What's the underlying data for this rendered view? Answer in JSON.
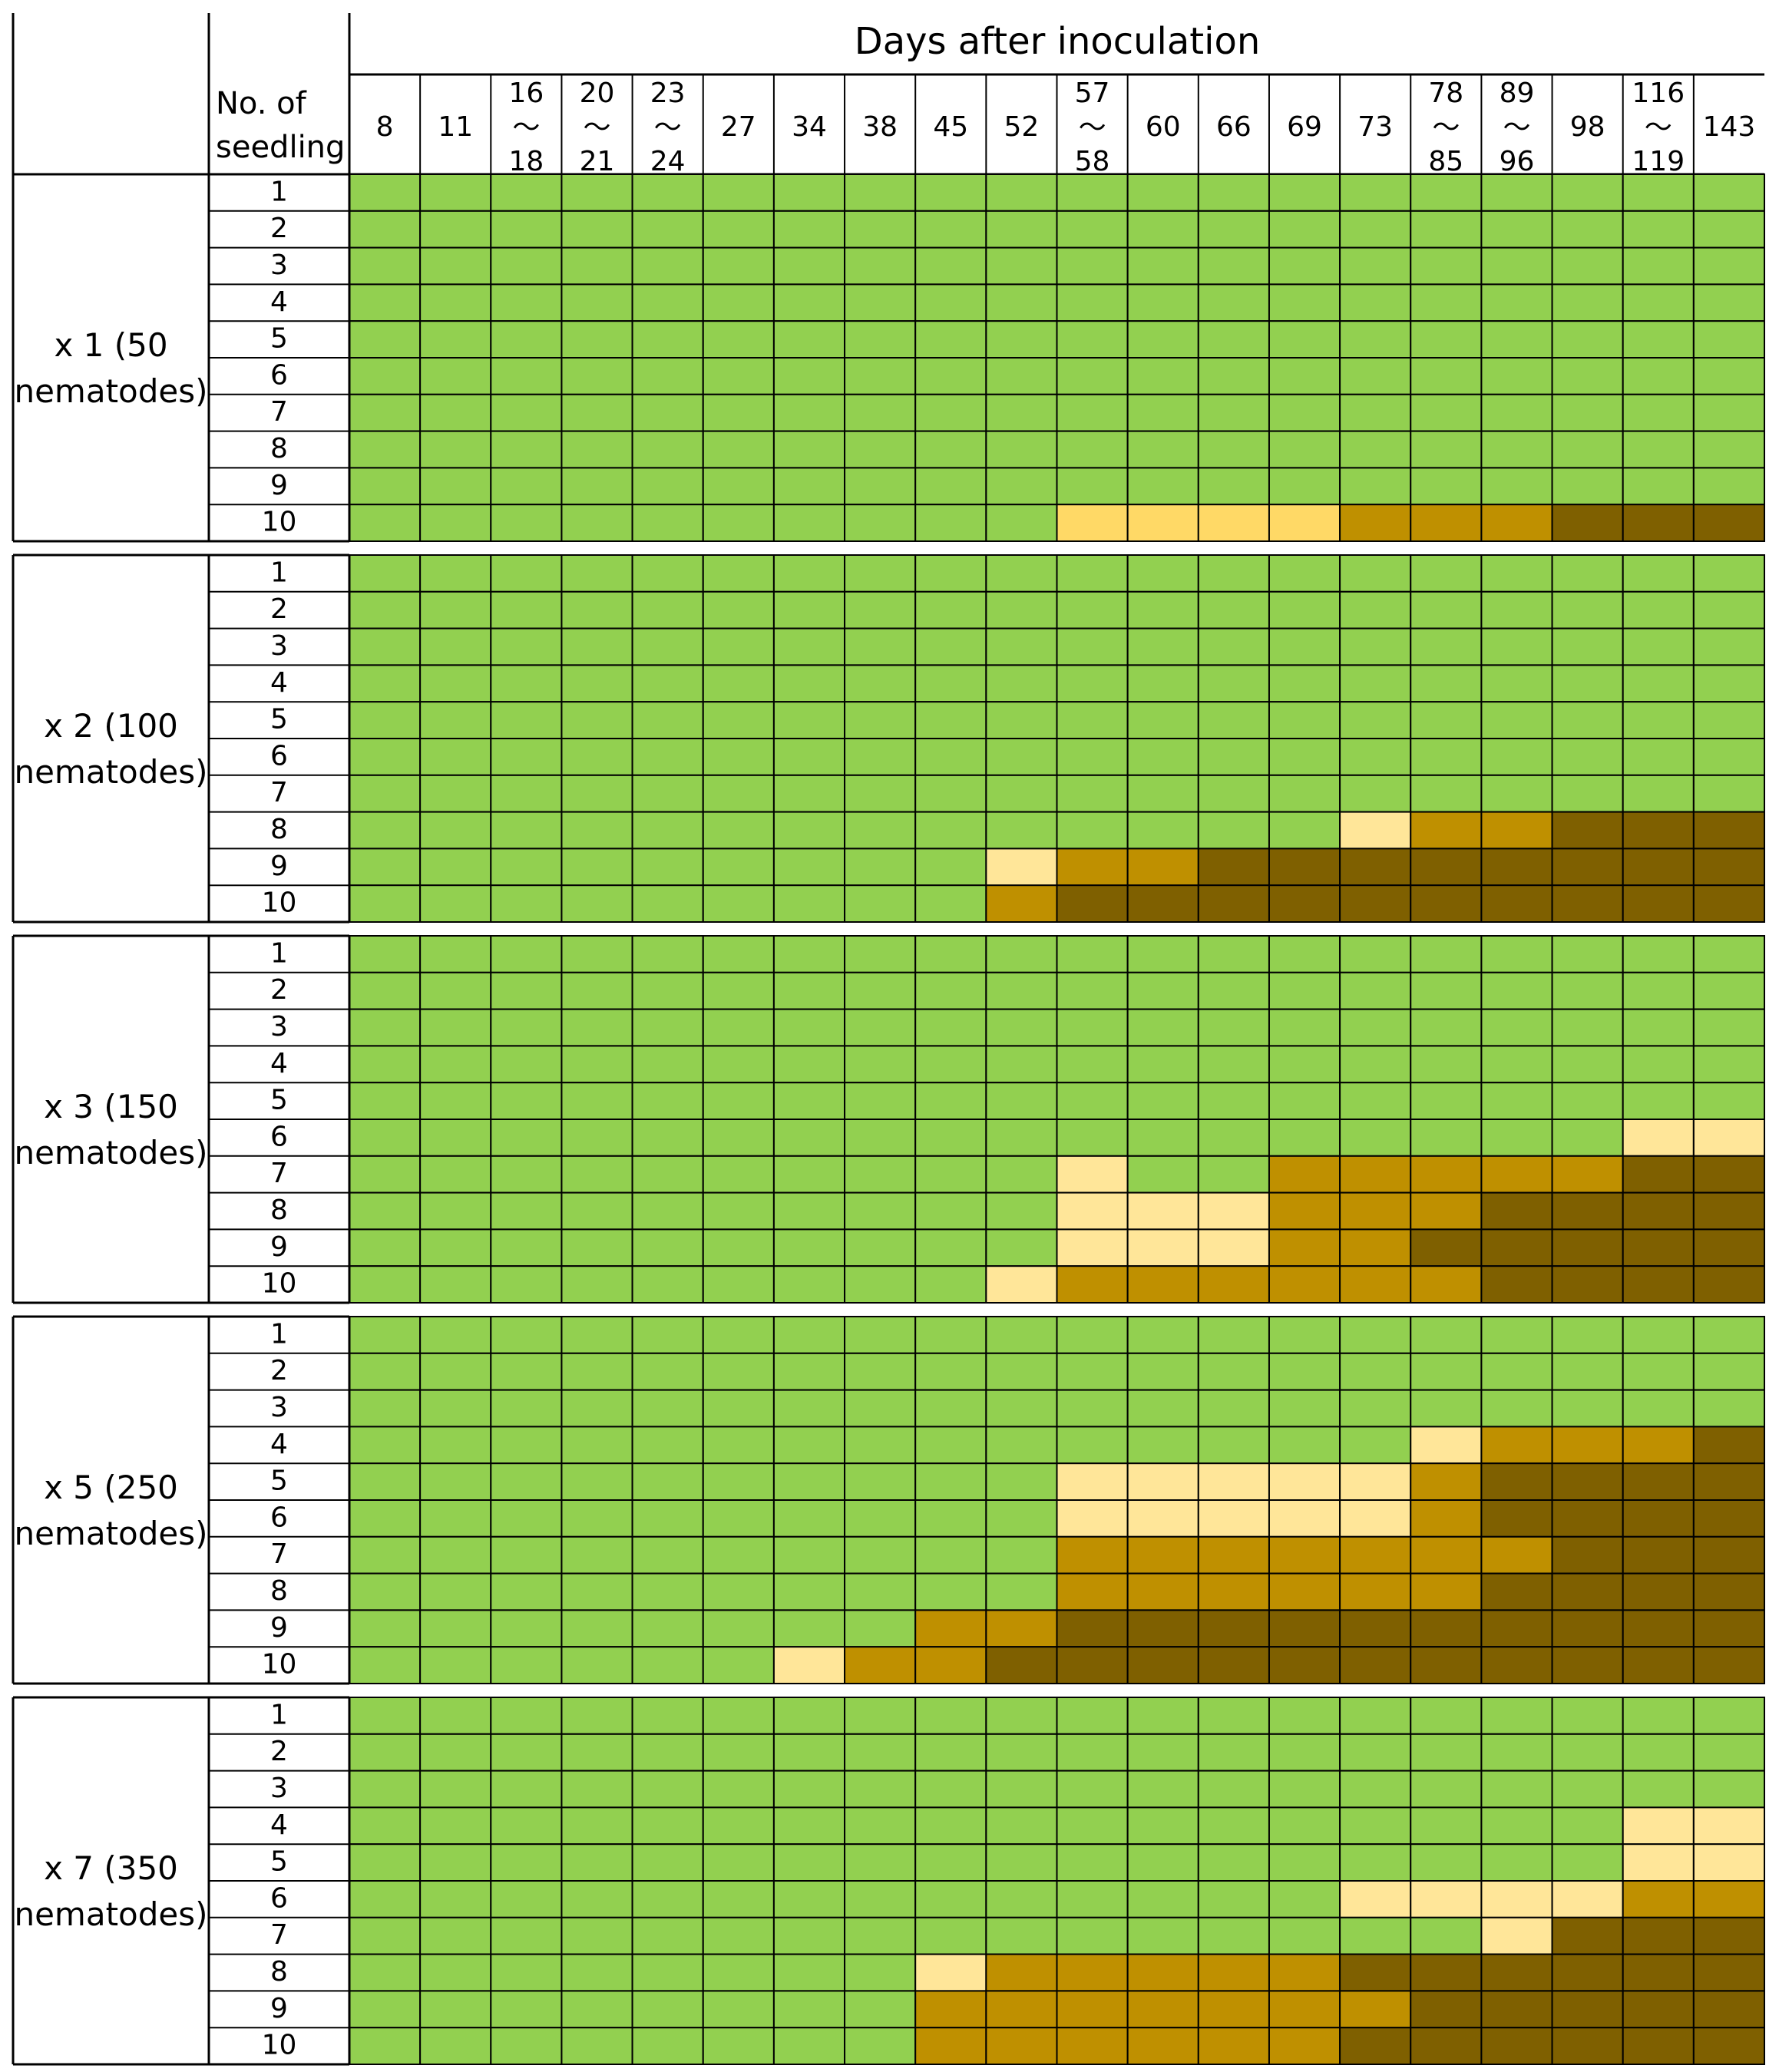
{
  "chart_data": {
    "type": "heatmap",
    "header_title": "Days after inoculation",
    "row_header_label": [
      "No. of",
      "seedling"
    ],
    "day_columns": [
      [
        "8"
      ],
      [
        "11"
      ],
      [
        "16",
        "〜",
        "18"
      ],
      [
        "20",
        "〜",
        "21"
      ],
      [
        "23",
        "〜",
        "24"
      ],
      [
        "27"
      ],
      [
        "34"
      ],
      [
        "38"
      ],
      [
        "45"
      ],
      [
        "52"
      ],
      [
        "57",
        "〜",
        "58"
      ],
      [
        "60"
      ],
      [
        "66"
      ],
      [
        "69"
      ],
      [
        "73"
      ],
      [
        "78",
        "〜",
        "85"
      ],
      [
        "89",
        "〜",
        "96"
      ],
      [
        "98"
      ],
      [
        "116",
        "〜",
        "119"
      ],
      [
        "143"
      ]
    ],
    "seedling_numbers": [
      "1",
      "2",
      "3",
      "4",
      "5",
      "6",
      "7",
      "8",
      "9",
      "10"
    ],
    "colors": {
      "G": "#92d050",
      "P": "#ffe699",
      "Y": "#ffd966",
      "O": "#bf9000",
      "B": "#7f6000"
    },
    "groups": [
      {
        "label": [
          "x 1 (50",
          "nematodes)"
        ],
        "rows": [
          "GGGGGGGGGGGGGGGGGGGG",
          "GGGGGGGGGGGGGGGGGGGG",
          "GGGGGGGGGGGGGGGGGGGG",
          "GGGGGGGGGGGGGGGGGGGG",
          "GGGGGGGGGGGGGGGGGGGG",
          "GGGGGGGGGGGGGGGGGGGG",
          "GGGGGGGGGGGGGGGGGGGG",
          "GGGGGGGGGGGGGGGGGGGG",
          "GGGGGGGGGGGGGGGGGGGG",
          "GGGGGGGGGGYYYYOOOBBB"
        ]
      },
      {
        "label": [
          "x 2 (100",
          "nematodes)"
        ],
        "rows": [
          "GGGGGGGGGGGGGGGGGGGG",
          "GGGGGGGGGGGGGGGGGGGG",
          "GGGGGGGGGGGGGGGGGGGG",
          "GGGGGGGGGGGGGGGGGGGG",
          "GGGGGGGGGGGGGGGGGGGG",
          "GGGGGGGGGGGGGGGGGGGG",
          "GGGGGGGGGGGGGGGGGGGG",
          "GGGGGGGGGGGGGGPOOBBB",
          "GGGGGGGGGPOOBBBBBBBB",
          "GGGGGGGGGOBBBBBBBBBB"
        ]
      },
      {
        "label": [
          "x 3 (150",
          "nematodes)"
        ],
        "rows": [
          "GGGGGGGGGGGGGGGGGGGG",
          "GGGGGGGGGGGGGGGGGGGG",
          "GGGGGGGGGGGGGGGGGGGG",
          "GGGGGGGGGGGGGGGGGGGG",
          "GGGGGGGGGGGGGGGGGGGG",
          "GGGGGGGGGGGGGGGGGGPP",
          "GGGGGGGGGGPGGOOOOOBB",
          "GGGGGGGGGGPPPOOOBBBB",
          "GGGGGGGGGGPPPOOBBBBB",
          "GGGGGGGGGPOOOOOOBBBB"
        ]
      },
      {
        "label": [
          "x 5 (250",
          "nematodes)"
        ],
        "rows": [
          "GGGGGGGGGGGGGGGGGGGG",
          "GGGGGGGGGGGGGGGGGGGG",
          "GGGGGGGGGGGGGGGGGGGG",
          "GGGGGGGGGGGGGGGPOOOB",
          "GGGGGGGGGGPPPPPOBBBB",
          "GGGGGGGGGGPPPPPOBBBB",
          "GGGGGGGGGGOOOOOOOBBB",
          "GGGGGGGGGGOOOOOOBBBB",
          "GGGGGGGGOOBBBBBBBBBB",
          "GGGGGGPOOBBBBBBBBBBB"
        ]
      },
      {
        "label": [
          "x 7 (350",
          "nematodes)"
        ],
        "rows": [
          "GGGGGGGGGGGGGGGGGGGG",
          "GGGGGGGGGGGGGGGGGGGG",
          "GGGGGGGGGGGGGGGGGGGG",
          "GGGGGGGGGGGGGGGGGGPP",
          "GGGGGGGGGGGGGGGGGGPP",
          "GGGGGGGGGGGGGGPPPPOO",
          "GGGGGGGGGGGGGGGGPBBB",
          "GGGGGGGGPOOOOOBBBBBB",
          "GGGGGGGGOOOOOOOBBBBB",
          "GGGGGGGGOOOOOOBBBBBB"
        ]
      }
    ]
  }
}
